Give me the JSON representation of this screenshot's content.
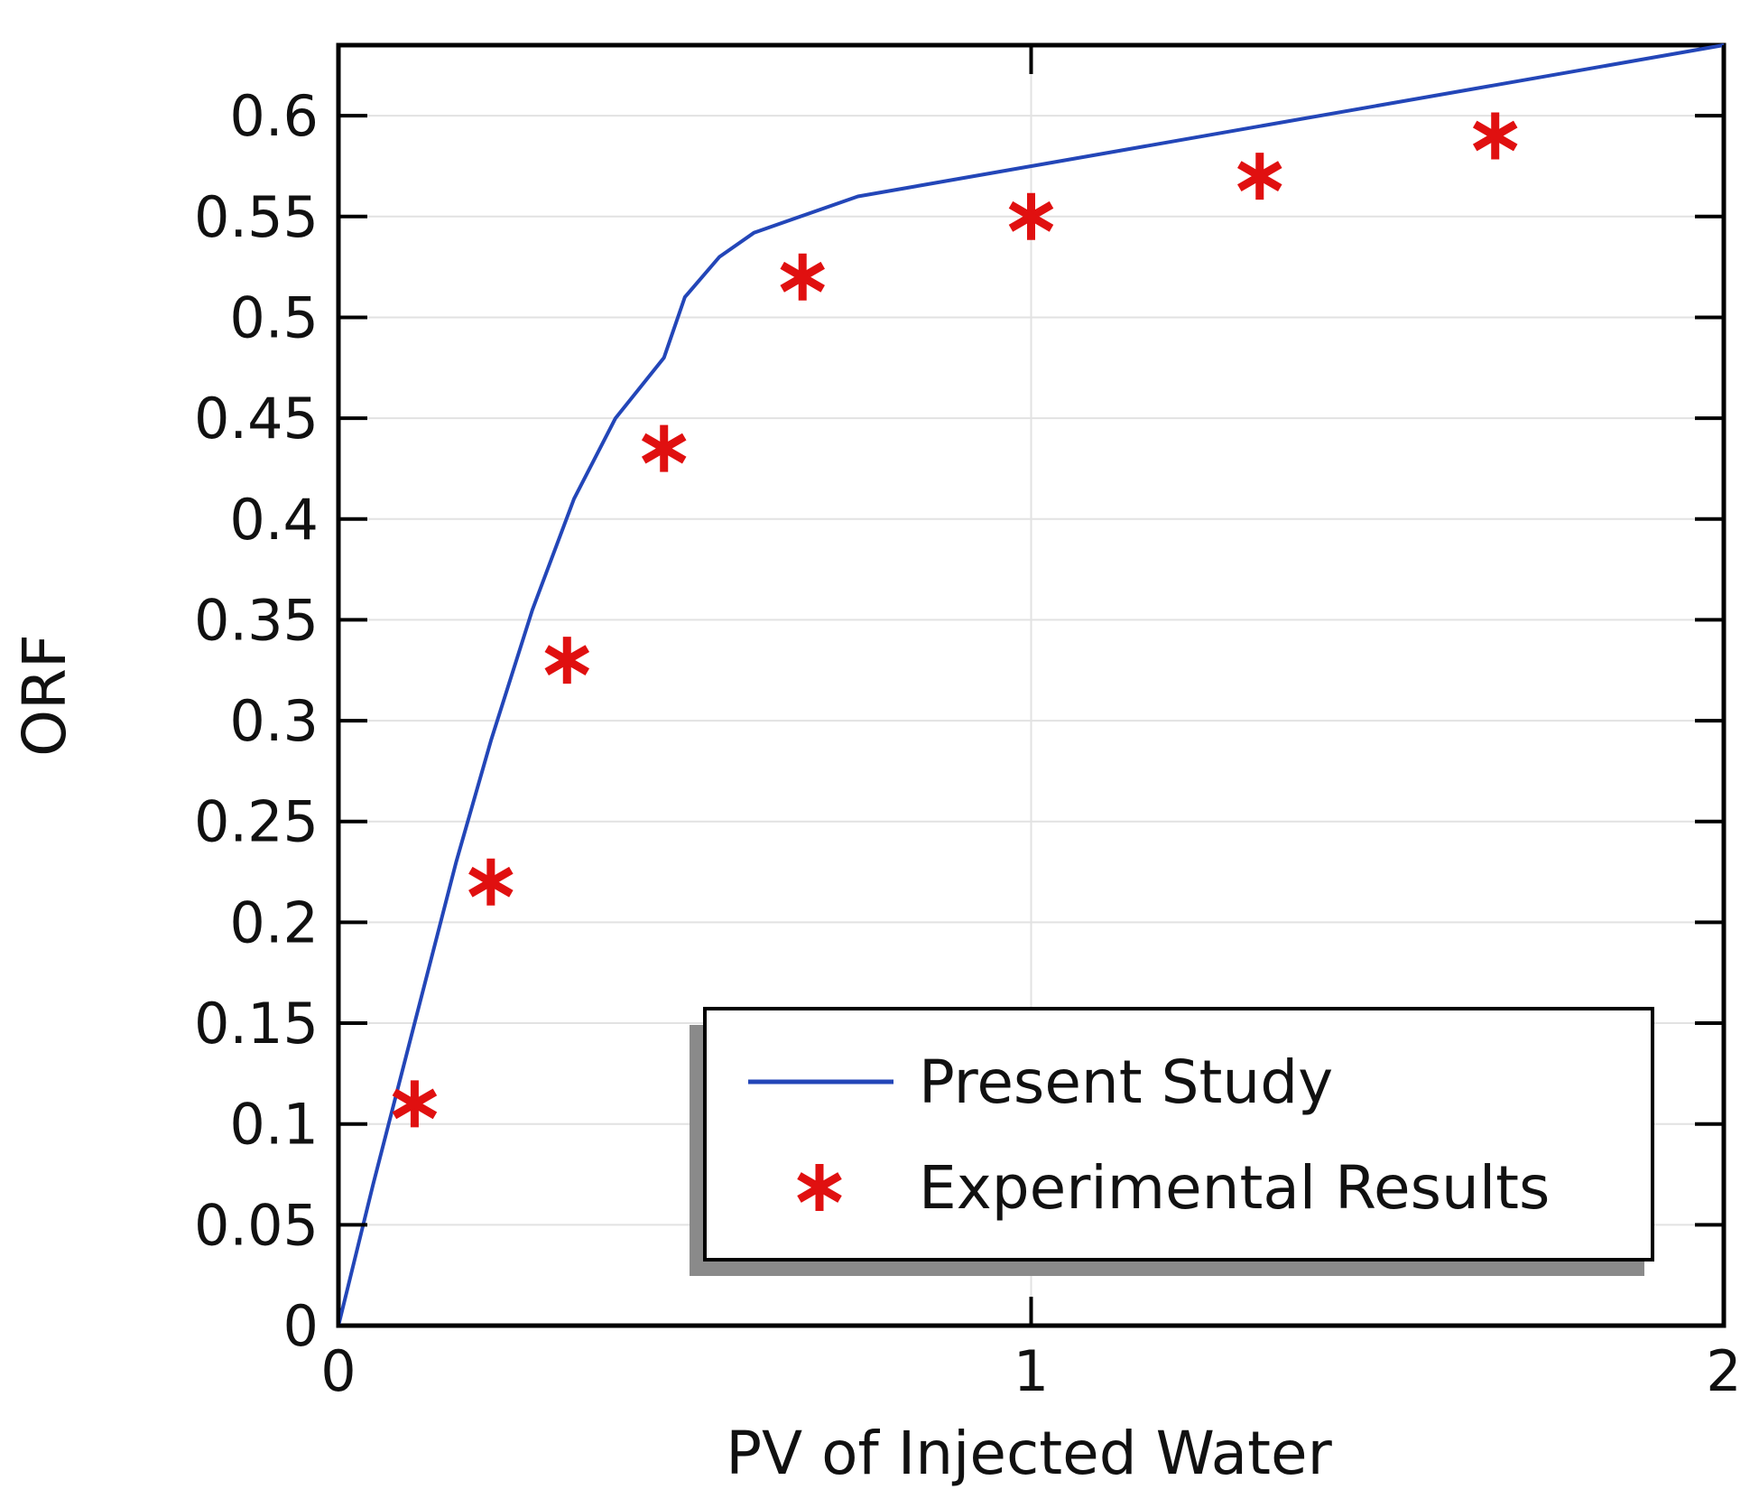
{
  "chart_data": {
    "type": "line",
    "title": "",
    "xlabel": "PV of Injected Water",
    "ylabel": "ORF",
    "xlim": [
      0,
      2
    ],
    "ylim": [
      0,
      0.635
    ],
    "x_ticks": [
      {
        "value": 0,
        "label": "0"
      },
      {
        "value": 1,
        "label": "1"
      },
      {
        "value": 2,
        "label": "2"
      }
    ],
    "y_ticks": [
      {
        "value": 0,
        "label": "0"
      },
      {
        "value": 0.05,
        "label": "0.05"
      },
      {
        "value": 0.1,
        "label": "0.1"
      },
      {
        "value": 0.15,
        "label": "0.15"
      },
      {
        "value": 0.2,
        "label": "0.2"
      },
      {
        "value": 0.25,
        "label": "0.25"
      },
      {
        "value": 0.3,
        "label": "0.3"
      },
      {
        "value": 0.35,
        "label": "0.35"
      },
      {
        "value": 0.4,
        "label": "0.4"
      },
      {
        "value": 0.45,
        "label": "0.45"
      },
      {
        "value": 0.5,
        "label": "0.5"
      },
      {
        "value": 0.55,
        "label": "0.55"
      },
      {
        "value": 0.6,
        "label": "0.6"
      }
    ],
    "grid": true,
    "legend_position": "bottom-right",
    "series": [
      {
        "name": "Present Study",
        "kind": "line",
        "color": "#2346b8",
        "x": [
          0,
          0.05,
          0.11,
          0.17,
          0.22,
          0.28,
          0.34,
          0.4,
          0.47,
          0.5,
          0.55,
          0.6,
          0.75,
          1.0,
          1.5,
          2.0
        ],
        "y": [
          0,
          0.07,
          0.15,
          0.23,
          0.29,
          0.355,
          0.41,
          0.45,
          0.48,
          0.51,
          0.53,
          0.542,
          0.56,
          0.575,
          0.605,
          0.635
        ]
      },
      {
        "name": "Experimental Results",
        "kind": "scatter",
        "marker": "asterisk",
        "color": "#e01010",
        "x": [
          0.11,
          0.22,
          0.33,
          0.47,
          0.67,
          1.0,
          1.33,
          1.67
        ],
        "y": [
          0.11,
          0.22,
          0.33,
          0.435,
          0.52,
          0.55,
          0.57,
          0.59
        ]
      }
    ]
  }
}
